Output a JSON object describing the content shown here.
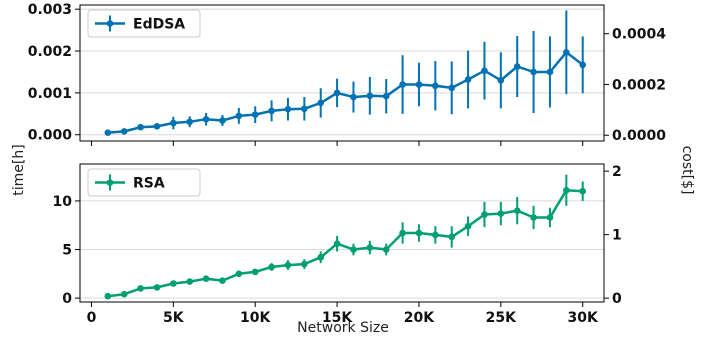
{
  "chart_data": [
    {
      "type": "line",
      "title": "",
      "xlabel": "",
      "ylabel": "",
      "y2label": "",
      "xlim": [
        -700,
        31300
      ],
      "ylim": [
        -0.00015,
        0.0031
      ],
      "y2lim": [
        -2.27e-05,
        0.000513
      ],
      "xticks": [
        0,
        5000,
        10000,
        15000,
        20000,
        25000,
        30000
      ],
      "xtick_labels": [
        "0",
        "5K",
        "10K",
        "15K",
        "20K",
        "25K",
        "30K"
      ],
      "yticks": [
        0.0,
        0.001,
        0.002,
        0.003
      ],
      "ytick_labels": [
        "0.000",
        "0.001",
        "0.002",
        "0.003"
      ],
      "y2ticks": [
        0.0,
        0.0002,
        0.0004
      ],
      "y2tick_labels": [
        "0.0000",
        "0.0002",
        "0.0004"
      ],
      "show_xtick_labels": false,
      "grid": "horizontal",
      "legend": "top-left",
      "series": [
        {
          "name": "EdDSA",
          "color": "#0072B2",
          "x": [
            1000,
            2000,
            3000,
            4000,
            5000,
            6000,
            7000,
            8000,
            9000,
            10000,
            11000,
            12000,
            13000,
            14000,
            15000,
            16000,
            17000,
            18000,
            19000,
            20000,
            21000,
            22000,
            23000,
            24000,
            25000,
            26000,
            27000,
            28000,
            29000,
            30000
          ],
          "y": [
            5e-05,
            8e-05,
            0.00018,
            0.0002,
            0.00028,
            0.00031,
            0.00037,
            0.00034,
            0.00045,
            0.00048,
            0.00057,
            0.00061,
            0.00062,
            0.00076,
            0.001,
            0.0009,
            0.00093,
            0.00092,
            0.0012,
            0.0012,
            0.00117,
            0.00112,
            0.00132,
            0.00153,
            0.0013,
            0.00163,
            0.0015,
            0.0015,
            0.00197,
            0.00167
          ],
          "err": [
            2e-05,
            3e-05,
            5e-05,
            6e-05,
            0.00015,
            0.00013,
            0.00015,
            0.00013,
            0.00019,
            0.0002,
            0.00025,
            0.00027,
            0.00028,
            0.00035,
            0.00034,
            0.00037,
            0.00045,
            0.00041,
            0.0007,
            0.00052,
            0.00059,
            0.00063,
            0.00069,
            0.00069,
            0.00067,
            0.00073,
            0.00098,
            0.00085,
            0.001,
            0.00068
          ]
        }
      ]
    },
    {
      "type": "line",
      "title": "",
      "xlabel": "Network Size",
      "ylabel": "",
      "y2label": "",
      "xlim": [
        -700,
        31300
      ],
      "ylim": [
        -0.4,
        13.8
      ],
      "y2lim": [
        -0.0612,
        2.112
      ],
      "xticks": [
        0,
        5000,
        10000,
        15000,
        20000,
        25000,
        30000
      ],
      "xtick_labels": [
        "0",
        "5K",
        "10K",
        "15K",
        "20K",
        "25K",
        "30K"
      ],
      "yticks": [
        0,
        5,
        10
      ],
      "ytick_labels": [
        "0",
        "5",
        "10"
      ],
      "y2ticks": [
        0,
        1,
        2
      ],
      "y2tick_labels": [
        "0",
        "1",
        "2"
      ],
      "show_xtick_labels": true,
      "grid": "horizontal",
      "legend": "top-left",
      "series": [
        {
          "name": "RSA",
          "color": "#009E73",
          "x": [
            1000,
            2000,
            3000,
            4000,
            5000,
            6000,
            7000,
            8000,
            9000,
            10000,
            11000,
            12000,
            13000,
            14000,
            15000,
            16000,
            17000,
            18000,
            19000,
            20000,
            21000,
            22000,
            23000,
            24000,
            25000,
            26000,
            27000,
            28000,
            29000,
            30000
          ],
          "y": [
            0.2,
            0.4,
            1.0,
            1.1,
            1.5,
            1.7,
            2.0,
            1.8,
            2.5,
            2.7,
            3.2,
            3.4,
            3.5,
            4.2,
            5.6,
            5.0,
            5.2,
            5.0,
            6.7,
            6.7,
            6.5,
            6.3,
            7.4,
            8.6,
            8.7,
            9.0,
            8.3,
            8.3,
            11.1,
            11.0
          ],
          "err": [
            0.1,
            0.15,
            0.2,
            0.2,
            0.2,
            0.2,
            0.25,
            0.3,
            0.3,
            0.3,
            0.4,
            0.5,
            0.5,
            0.6,
            0.8,
            0.6,
            0.7,
            0.6,
            1.1,
            0.9,
            0.9,
            1.1,
            1.0,
            1.3,
            1.2,
            1.4,
            1.2,
            1.0,
            1.6,
            1.0
          ]
        }
      ]
    }
  ],
  "figure": {
    "shared_ylabel": "time[h]",
    "shared_y2label": "cost[$]"
  }
}
